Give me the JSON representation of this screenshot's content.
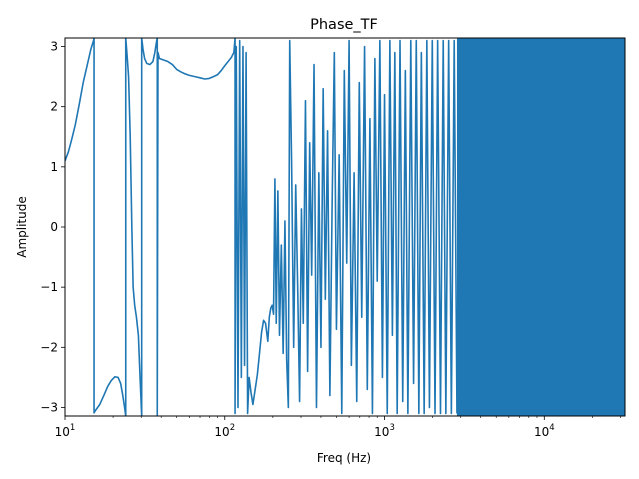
{
  "chart_data": {
    "type": "line",
    "title": "Phase_TF",
    "xlabel": "Freq (Hz)",
    "ylabel": "Amplitude",
    "xscale": "log",
    "xlim": [
      10,
      32000
    ],
    "ylim": [
      -3.1416,
      3.1416
    ],
    "grid": false,
    "legend": "none",
    "color": "#1f77b4",
    "xticks": [
      {
        "value": 10,
        "base": "10",
        "exp": "1"
      },
      {
        "value": 100,
        "base": "10",
        "exp": "2"
      },
      {
        "value": 1000,
        "base": "10",
        "exp": "3"
      },
      {
        "value": 10000,
        "base": "10",
        "exp": "4"
      }
    ],
    "yticks": [
      {
        "value": -3,
        "label": "−3"
      },
      {
        "value": -2,
        "label": "−2"
      },
      {
        "value": -1,
        "label": "−1"
      },
      {
        "value": 0,
        "label": "0"
      },
      {
        "value": 1,
        "label": "1"
      },
      {
        "value": 2,
        "label": "2"
      },
      {
        "value": 3,
        "label": "3"
      }
    ],
    "series": [
      {
        "values": [
          [
            10,
            1.1
          ],
          [
            10.5,
            1.25
          ],
          [
            11,
            1.45
          ],
          [
            11.6,
            1.7
          ],
          [
            12.3,
            2.05
          ],
          [
            13,
            2.4
          ],
          [
            13.8,
            2.7
          ],
          [
            14.5,
            2.95
          ],
          [
            15.1,
            3.1
          ],
          [
            15.2,
            3.14
          ],
          [
            15.2,
            -3.09
          ],
          [
            15.5,
            -3.05
          ],
          [
            16.5,
            -2.95
          ],
          [
            17.5,
            -2.8
          ],
          [
            18.5,
            -2.65
          ],
          [
            19.5,
            -2.55
          ],
          [
            20.5,
            -2.49
          ],
          [
            21.5,
            -2.5
          ],
          [
            22.3,
            -2.6
          ],
          [
            23,
            -2.8
          ],
          [
            23.6,
            -3.0
          ],
          [
            24,
            -3.14
          ],
          [
            24,
            3.14
          ],
          [
            24.4,
            2.9
          ],
          [
            25,
            2.5
          ],
          [
            25.6,
            1.5
          ],
          [
            26.2,
            0.0
          ],
          [
            26.7,
            -1.0
          ],
          [
            27.3,
            -1.3
          ],
          [
            28,
            -1.5
          ],
          [
            28.8,
            -1.8
          ],
          [
            29.5,
            -2.5
          ],
          [
            30.2,
            -3.14
          ],
          [
            30.2,
            3.14
          ],
          [
            30.8,
            2.95
          ],
          [
            31.5,
            2.8
          ],
          [
            32.5,
            2.72
          ],
          [
            34,
            2.7
          ],
          [
            35.5,
            2.75
          ],
          [
            36.5,
            2.9
          ],
          [
            37.5,
            3.1
          ],
          [
            37.8,
            3.14
          ],
          [
            37.8,
            -3.14
          ],
          [
            38.2,
            2.9
          ],
          [
            39,
            2.8
          ],
          [
            41,
            2.78
          ],
          [
            44,
            2.75
          ],
          [
            47,
            2.7
          ],
          [
            50,
            2.62
          ],
          [
            53,
            2.58
          ],
          [
            56,
            2.55
          ],
          [
            60,
            2.52
          ],
          [
            65,
            2.5
          ],
          [
            70,
            2.48
          ],
          [
            75,
            2.46
          ],
          [
            80,
            2.47
          ],
          [
            85,
            2.5
          ],
          [
            90,
            2.53
          ],
          [
            95,
            2.6
          ],
          [
            100,
            2.68
          ],
          [
            105,
            2.75
          ],
          [
            110,
            2.82
          ],
          [
            114,
            2.9
          ],
          [
            116,
            3.14
          ],
          [
            116,
            -3.1
          ],
          [
            118,
            3.0
          ],
          [
            121,
            -3.0
          ],
          [
            124,
            3.1
          ],
          [
            127,
            -2.5
          ],
          [
            130,
            3.0
          ],
          [
            133,
            -2.3
          ],
          [
            136,
            2.9
          ],
          [
            139,
            -3.1
          ],
          [
            142,
            -2.5
          ],
          [
            146,
            -2.75
          ],
          [
            150,
            -2.95
          ],
          [
            155,
            -2.7
          ],
          [
            160,
            -2.45
          ],
          [
            165,
            -2.1
          ],
          [
            170,
            -1.75
          ],
          [
            175,
            -1.55
          ],
          [
            180,
            -1.6
          ],
          [
            186,
            -1.9
          ],
          [
            190,
            -1.5
          ],
          [
            194,
            -1.35
          ],
          [
            198,
            -1.3
          ],
          [
            202,
            -1.45
          ],
          [
            206,
            0.8
          ],
          [
            210,
            -1.6
          ],
          [
            215,
            0.6
          ],
          [
            220,
            -1.8
          ],
          [
            226,
            -0.3
          ],
          [
            232,
            -2.1
          ],
          [
            238,
            0.1
          ],
          [
            244,
            -2.2
          ],
          [
            250,
            -3.0
          ],
          [
            255,
            3.1
          ],
          [
            262,
            1.1
          ],
          [
            270,
            -2.0
          ],
          [
            278,
            0.7
          ],
          [
            286,
            -1.0
          ],
          [
            294,
            -2.9
          ],
          [
            302,
            0.3
          ],
          [
            310,
            -1.6
          ],
          [
            320,
            2.1
          ],
          [
            330,
            -2.4
          ],
          [
            340,
            1.4
          ],
          [
            350,
            -0.8
          ],
          [
            362,
            2.7
          ],
          [
            375,
            -3.0
          ],
          [
            388,
            0.9
          ],
          [
            400,
            -2.0
          ],
          [
            413,
            2.3
          ],
          [
            426,
            -1.2
          ],
          [
            440,
            1.6
          ],
          [
            455,
            -2.8
          ],
          [
            470,
            0.4
          ],
          [
            485,
            2.9
          ],
          [
            500,
            -1.7
          ],
          [
            520,
            1.2
          ],
          [
            540,
            -3.1
          ],
          [
            560,
            2.6
          ],
          [
            580,
            -0.6
          ],
          [
            600,
            3.1
          ],
          [
            620,
            -2.3
          ],
          [
            645,
            0.9
          ],
          [
            670,
            -2.9
          ],
          [
            695,
            2.4
          ],
          [
            720,
            -1.5
          ],
          [
            750,
            3.0
          ],
          [
            780,
            -2.7
          ],
          [
            810,
            1.8
          ],
          [
            840,
            -3.1
          ],
          [
            870,
            2.8
          ],
          [
            900,
            -0.9
          ],
          [
            935,
            3.1
          ],
          [
            970,
            -2.5
          ],
          [
            1000,
            2.2
          ],
          [
            1040,
            -3.1
          ],
          [
            1080,
            3.1
          ],
          [
            1120,
            -1.8
          ],
          [
            1160,
            2.9
          ],
          [
            1200,
            -3.1
          ],
          [
            1250,
            3.1
          ],
          [
            1300,
            -2.9
          ],
          [
            1350,
            2.6
          ],
          [
            1400,
            -3.1
          ],
          [
            1460,
            3.1
          ],
          [
            1520,
            -2.6
          ],
          [
            1580,
            3.1
          ],
          [
            1640,
            -3.1
          ],
          [
            1700,
            2.9
          ],
          [
            1770,
            -3.1
          ],
          [
            1840,
            3.1
          ],
          [
            1910,
            -3.0
          ],
          [
            1990,
            3.1
          ],
          [
            2070,
            -3.1
          ],
          [
            2150,
            3.1
          ],
          [
            2240,
            -3.1
          ],
          [
            2330,
            3.1
          ],
          [
            2420,
            -3.1
          ],
          [
            2520,
            3.1
          ],
          [
            2620,
            -3.1
          ],
          [
            2730,
            3.1
          ],
          [
            2840,
            -3.1
          ]
        ]
      }
    ],
    "dense_band": {
      "from": 2840,
      "to": 32000,
      "lower": -3.1416,
      "upper": 3.1416
    }
  }
}
